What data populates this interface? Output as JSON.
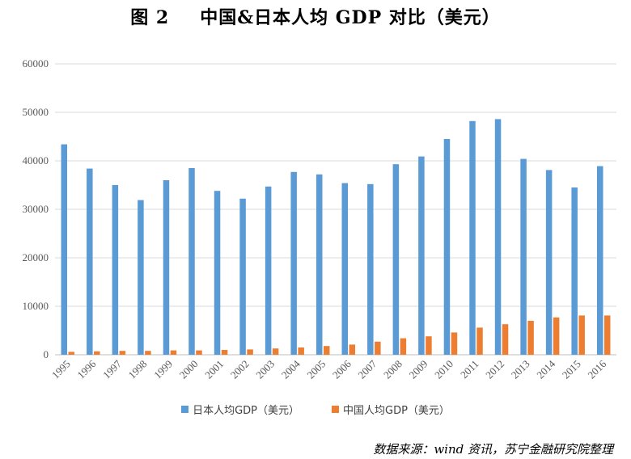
{
  "figure": {
    "number": "图 2",
    "title": "中国&日本人均 GDP 对比（美元）",
    "source": "数据来源：wind 资讯，苏宁金融研究院整理"
  },
  "chart_data": {
    "type": "bar",
    "categories": [
      "1995",
      "1996",
      "1997",
      "1998",
      "1999",
      "2000",
      "2001",
      "2002",
      "2003",
      "2004",
      "2005",
      "2006",
      "2007",
      "2008",
      "2009",
      "2010",
      "2011",
      "2012",
      "2013",
      "2014",
      "2015",
      "2016"
    ],
    "series": [
      {
        "name": "日本人均GDP（美元）",
        "color": "#5B9BD5",
        "values": [
          43400,
          38400,
          35000,
          31900,
          36000,
          38500,
          33800,
          32200,
          34700,
          37700,
          37200,
          35400,
          35200,
          39300,
          40900,
          44500,
          48200,
          48600,
          40400,
          38100,
          34500,
          38900
        ]
      },
      {
        "name": "中国人均GDP（美元）",
        "color": "#ED7D31",
        "values": [
          600,
          700,
          800,
          800,
          900,
          900,
          1000,
          1100,
          1300,
          1500,
          1800,
          2100,
          2700,
          3400,
          3800,
          4600,
          5600,
          6300,
          7000,
          7700,
          8100,
          8100
        ]
      }
    ],
    "yticks": [
      "0",
      "10000",
      "20000",
      "30000",
      "40000",
      "50000",
      "60000"
    ],
    "ylim": [
      0,
      60000
    ],
    "grid": true,
    "legend": "bottom-center"
  }
}
